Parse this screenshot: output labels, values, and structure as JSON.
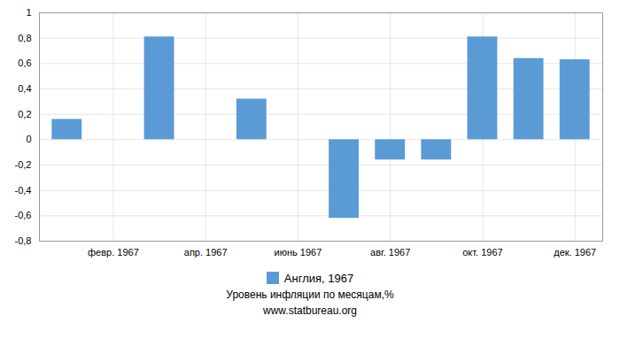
{
  "chart_data": {
    "type": "bar",
    "subtitle": "Уровень инфляции по месяцам,%",
    "annotations": [
      "www.statbureau.org"
    ],
    "x": [
      1,
      2,
      3,
      4,
      5,
      6,
      7,
      8,
      9,
      10,
      11,
      12
    ],
    "series": [
      {
        "name": "Англия, 1967",
        "color": "#5b9bd5",
        "values": [
          0.16,
          0.0,
          0.81,
          0.0,
          0.32,
          0.0,
          -0.62,
          -0.16,
          -0.16,
          0.81,
          0.64,
          0.63
        ]
      }
    ],
    "xlim": [
      0.4,
      12.6
    ],
    "xticks": [
      {
        "value": 2,
        "label": "февр. 1967"
      },
      {
        "value": 4,
        "label": "апр. 1967"
      },
      {
        "value": 6,
        "label": "июнь 1967"
      },
      {
        "value": 8,
        "label": "авг. 1967"
      },
      {
        "value": 10,
        "label": "окт. 1967"
      },
      {
        "value": 12,
        "label": "дек. 1967"
      }
    ],
    "ylim": [
      -0.8,
      1.0
    ],
    "yticks": [
      {
        "value": -0.8,
        "label": "-0,8"
      },
      {
        "value": -0.6,
        "label": "-0,6"
      },
      {
        "value": -0.4,
        "label": "-0,4"
      },
      {
        "value": -0.2,
        "label": "-0,2"
      },
      0,
      {
        "value": 0.2,
        "label": "0,2"
      },
      {
        "value": 0.4,
        "label": "0,4"
      },
      {
        "value": 0.6,
        "label": "0,6"
      },
      {
        "value": 0.8,
        "label": "0,8"
      },
      1
    ],
    "grid": true,
    "legend": "bottom"
  }
}
